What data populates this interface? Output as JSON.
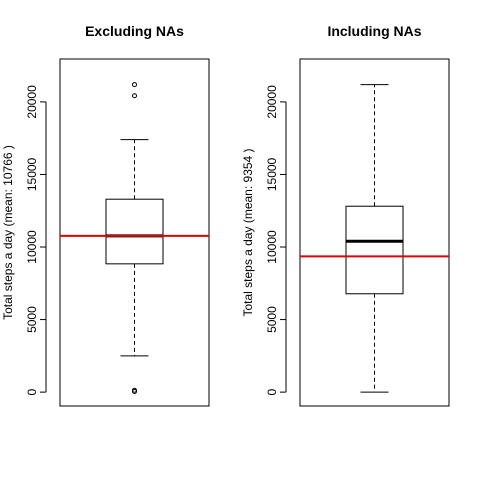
{
  "chart_data": [
    {
      "type": "boxplot",
      "title": "Excluding NAs",
      "ylabel": "Total steps a day (mean: 10766 )",
      "ylim": [
        0,
        22000
      ],
      "yticks": [
        0,
        5000,
        10000,
        15000,
        20000
      ],
      "box": {
        "whisker_low": 2500,
        "q1": 8840,
        "median": 10765,
        "q3": 13295,
        "whisker_high": 17400,
        "outliers": [
          41,
          126,
          20427,
          21194
        ]
      },
      "mean_line": {
        "value": 10766,
        "color": "#e00000"
      }
    },
    {
      "type": "boxplot",
      "title": "Including NAs",
      "ylabel": "Total steps a day (mean: 9354 )",
      "ylim": [
        0,
        22000
      ],
      "yticks": [
        0,
        5000,
        10000,
        15000,
        20000
      ],
      "box": {
        "whisker_low": 0,
        "q1": 6778,
        "median": 10395,
        "q3": 12811,
        "whisker_high": 21194,
        "outliers": []
      },
      "mean_line": {
        "value": 9354,
        "color": "#e00000"
      }
    }
  ]
}
